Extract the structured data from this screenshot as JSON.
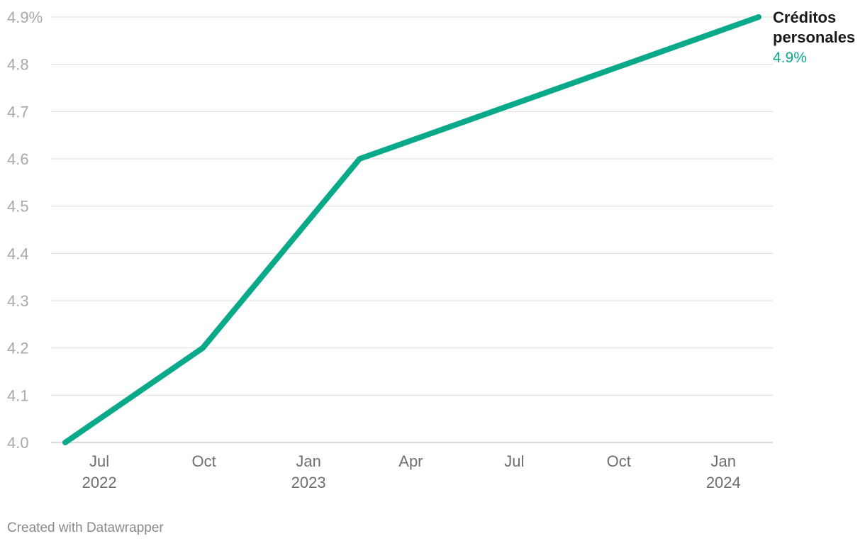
{
  "chart_data": {
    "type": "line",
    "x_axis_type": "date",
    "x": [
      "2022-06-01",
      "2022-09-30",
      "2023-02-15",
      "2024-02-01"
    ],
    "series": [
      {
        "name": "Créditos personales",
        "values": [
          4.0,
          4.2,
          4.6,
          4.9
        ],
        "color": "#0aa98a",
        "end_label": "4.9%"
      }
    ],
    "ylim": [
      4.0,
      4.9
    ],
    "yticks": [
      {
        "value": 4.0,
        "label": "4.0"
      },
      {
        "value": 4.1,
        "label": "4.1"
      },
      {
        "value": 4.2,
        "label": "4.2"
      },
      {
        "value": 4.3,
        "label": "4.3"
      },
      {
        "value": 4.4,
        "label": "4.4"
      },
      {
        "value": 4.5,
        "label": "4.5"
      },
      {
        "value": 4.6,
        "label": "4.6"
      },
      {
        "value": 4.7,
        "label": "4.7"
      },
      {
        "value": 4.8,
        "label": "4.8"
      },
      {
        "value": 4.9,
        "label": "4.9%"
      }
    ],
    "xlim": [
      "2022-06-01",
      "2024-02-01"
    ],
    "xticks": [
      {
        "date": "2022-07-01",
        "label": "Jul",
        "sublabel": "2022"
      },
      {
        "date": "2022-10-01",
        "label": "Oct",
        "sublabel": ""
      },
      {
        "date": "2023-01-01",
        "label": "Jan",
        "sublabel": "2023"
      },
      {
        "date": "2023-04-01",
        "label": "Apr",
        "sublabel": ""
      },
      {
        "date": "2023-07-01",
        "label": "Jul",
        "sublabel": ""
      },
      {
        "date": "2023-10-01",
        "label": "Oct",
        "sublabel": ""
      },
      {
        "date": "2024-01-01",
        "label": "Jan",
        "sublabel": "2024"
      }
    ],
    "grid": true,
    "legend": "none",
    "title": "",
    "xlabel": "",
    "ylabel": ""
  },
  "footer": {
    "credit": "Created with Datawrapper"
  }
}
